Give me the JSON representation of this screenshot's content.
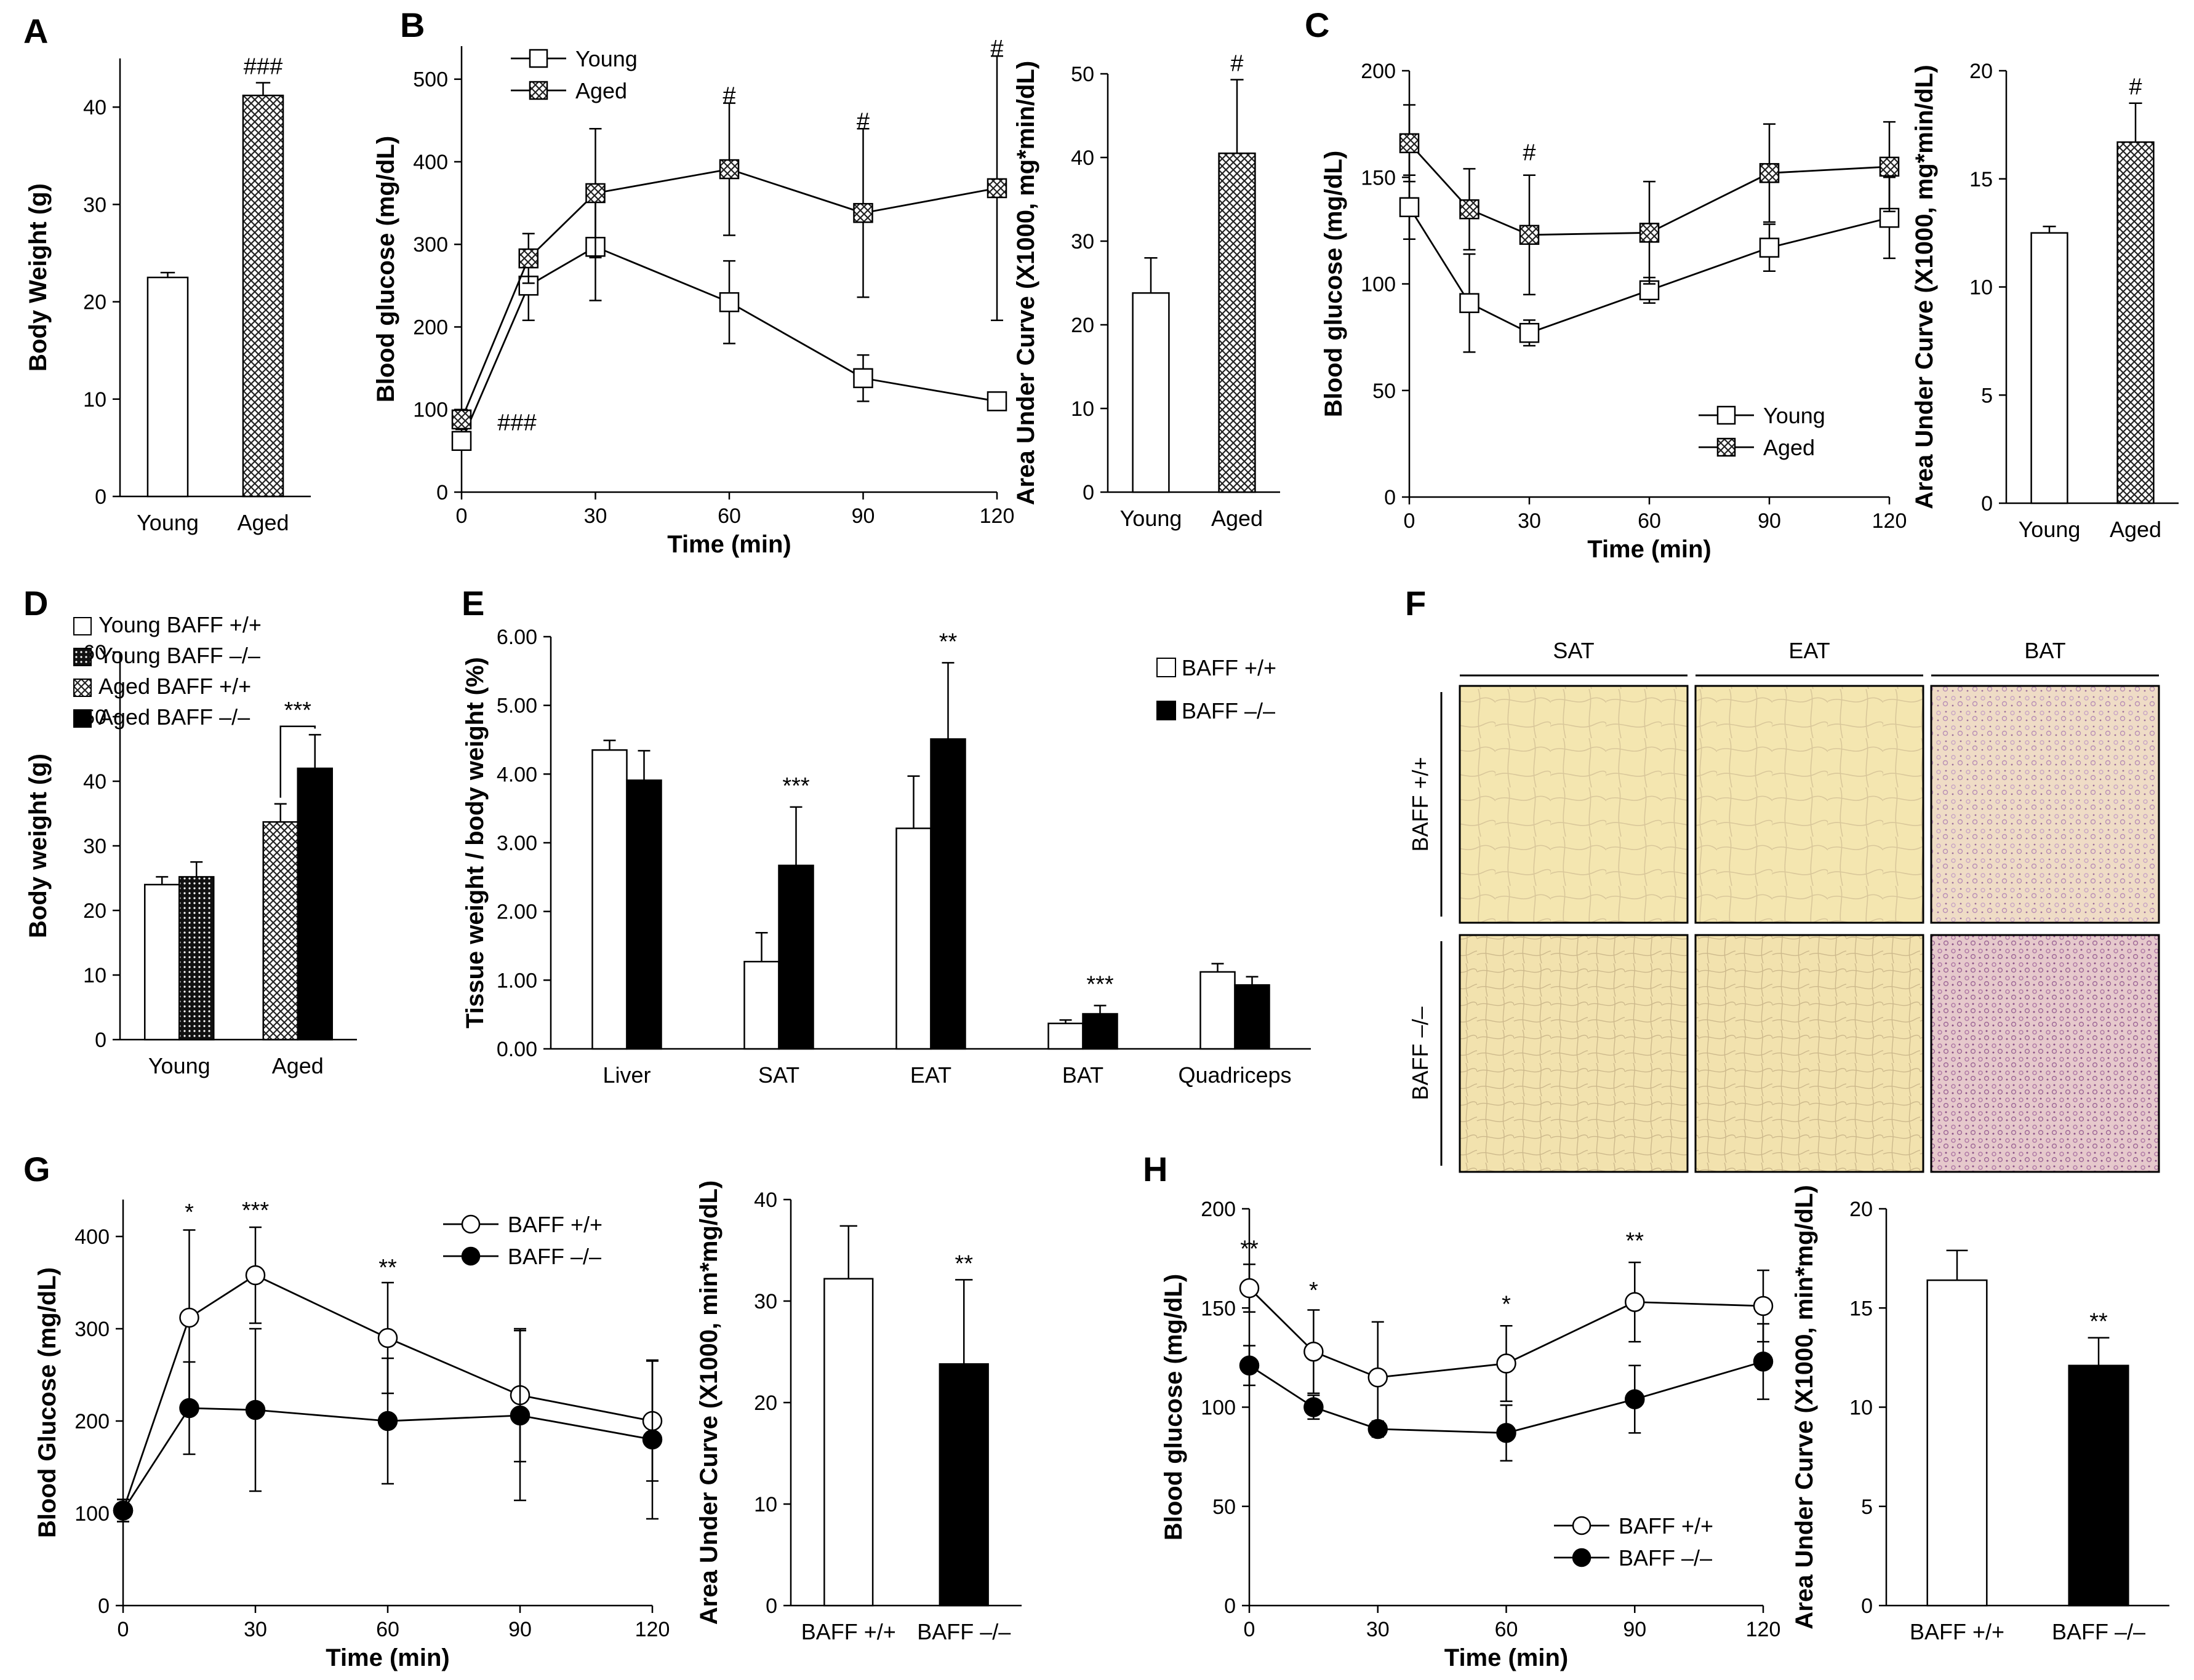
{
  "colors": {
    "axis": "#000000",
    "bar_white": "#ffffff",
    "bar_black": "#000000",
    "hatch": "#333333",
    "histo_yellow": "#f4e6b0",
    "histo_pink": "#dcc0d8"
  },
  "chart_data": [
    {
      "id": "A",
      "type": "bar",
      "panel_letter": "A",
      "ylabel": "Body Weight (g)",
      "ylim": [
        0,
        45
      ],
      "yticks": [
        0,
        10,
        20,
        30,
        40
      ],
      "categories": [
        "Young",
        "Aged"
      ],
      "series": [
        {
          "name": "Body weight",
          "values": [
            22.5,
            41.2
          ],
          "errors": [
            0.5,
            1.3
          ],
          "fills": [
            "white",
            "hatch"
          ]
        }
      ],
      "annotations": [
        {
          "category": "Aged",
          "text": "###"
        }
      ]
    },
    {
      "id": "B_line",
      "type": "line",
      "panel_letter": "B",
      "xlabel": "Time (min)",
      "ylabel": "Blood glucose (mg/dL)",
      "xlim": [
        0,
        120
      ],
      "ylim": [
        0,
        540
      ],
      "xticks": [
        0,
        30,
        60,
        90,
        120
      ],
      "yticks": [
        0,
        100,
        200,
        300,
        400,
        500
      ],
      "x": [
        0,
        15,
        30,
        60,
        90,
        120
      ],
      "series": [
        {
          "name": "Young",
          "marker": "square",
          "values": [
            62,
            250,
            297,
            230,
            138,
            110
          ],
          "errors": [
            10,
            42,
            65,
            50,
            28,
            8
          ]
        },
        {
          "name": "Aged",
          "marker": "square-x",
          "values": [
            88,
            283,
            362,
            391,
            338,
            368
          ],
          "errors": [
            12,
            30,
            78,
            80,
            102,
            160
          ]
        }
      ],
      "annotations": [
        {
          "text": "###",
          "x": 0,
          "y": 75
        },
        {
          "text": "#",
          "x": 60,
          "y": 471
        },
        {
          "text": "#",
          "x": 90,
          "y": 440
        },
        {
          "text": "#",
          "x": 120,
          "y": 528
        }
      ],
      "legend": "top-left"
    },
    {
      "id": "B_bar",
      "type": "bar",
      "ylabel": "Area Under Curve (X1000, mg*min/dL)",
      "ylim": [
        0,
        50
      ],
      "yticks": [
        0,
        10,
        20,
        30,
        40,
        50
      ],
      "categories": [
        "Young",
        "Aged"
      ],
      "series": [
        {
          "name": "AUC",
          "values": [
            23.8,
            40.5
          ],
          "errors": [
            4.2,
            8.8
          ],
          "fills": [
            "white",
            "hatch"
          ]
        }
      ],
      "annotations": [
        {
          "category": "Aged",
          "text": "#"
        }
      ]
    },
    {
      "id": "C_line",
      "type": "line",
      "panel_letter": "C",
      "xlabel": "Time (min)",
      "ylabel": "Blood glucose (mg/dL)",
      "xlim": [
        0,
        120
      ],
      "ylim": [
        0,
        200
      ],
      "xticks": [
        0,
        30,
        60,
        90,
        120
      ],
      "yticks": [
        0,
        50,
        100,
        150,
        200
      ],
      "x": [
        0,
        15,
        30,
        60,
        90,
        120
      ],
      "series": [
        {
          "name": "Young",
          "marker": "square",
          "values": [
            136,
            91,
            77,
            97,
            117,
            131
          ],
          "errors": [
            15,
            23,
            6,
            6,
            11,
            19
          ]
        },
        {
          "name": "Aged",
          "marker": "square-x",
          "values": [
            166,
            135,
            123,
            124,
            152,
            155
          ],
          "errors": [
            18,
            19,
            28,
            24,
            23,
            21
          ]
        }
      ],
      "annotations": [
        {
          "text": "#",
          "x": 30,
          "y": 158
        }
      ],
      "legend": "bottom-right"
    },
    {
      "id": "C_bar",
      "type": "bar",
      "ylabel": "Area Under Curve (X1000, mg*min/dL)",
      "ylim": [
        0,
        20
      ],
      "yticks": [
        0,
        5,
        10,
        15,
        20
      ],
      "categories": [
        "Young",
        "Aged"
      ],
      "series": [
        {
          "name": "AUC",
          "values": [
            12.5,
            16.7
          ],
          "errors": [
            0.3,
            1.8
          ],
          "fills": [
            "white",
            "hatch"
          ]
        }
      ],
      "annotations": [
        {
          "category": "Aged",
          "text": "#"
        }
      ]
    },
    {
      "id": "D",
      "type": "bar",
      "panel_letter": "D",
      "ylabel": "Body weight (g)",
      "ylim": [
        0,
        60
      ],
      "yticks": [
        0,
        10,
        20,
        30,
        40,
        50,
        60
      ],
      "categories": [
        "Young",
        "Aged"
      ],
      "series": [
        {
          "name": "Young BAFF +/+",
          "fill": "white",
          "category": "Young",
          "value": 24,
          "error": 1.2
        },
        {
          "name": "Young BAFF –/–",
          "fill": "dense",
          "category": "Young",
          "value": 25.2,
          "error": 2.3
        },
        {
          "name": "Aged BAFF +/+",
          "fill": "hatch",
          "category": "Aged",
          "value": 33.7,
          "error": 2.8
        },
        {
          "name": "Aged BAFF –/–",
          "fill": "black",
          "category": "Aged",
          "value": 42,
          "error": 5.2
        }
      ],
      "annotations": [
        {
          "text": "***",
          "between": [
            "Aged BAFF +/+",
            "Aged BAFF –/–"
          ]
        }
      ],
      "legend": "top-left"
    },
    {
      "id": "E",
      "type": "bar",
      "panel_letter": "E",
      "ylabel": "Tissue weight / body weight (%)",
      "ylim": [
        0,
        6
      ],
      "yticks": [
        "0.00",
        "1.00",
        "2.00",
        "3.00",
        "4.00",
        "5.00",
        "6.00"
      ],
      "categories": [
        "Liver",
        "SAT",
        "EAT",
        "BAT",
        "Quadriceps"
      ],
      "series": [
        {
          "name": "BAFF +/+",
          "fill": "white",
          "values": [
            4.35,
            1.27,
            3.21,
            0.37,
            1.12
          ],
          "errors": [
            0.14,
            0.42,
            0.76,
            0.05,
            0.12
          ]
        },
        {
          "name": "BAFF –/–",
          "fill": "black",
          "values": [
            3.91,
            2.67,
            4.51,
            0.51,
            0.93
          ],
          "errors": [
            0.43,
            0.85,
            1.11,
            0.12,
            0.12
          ]
        }
      ],
      "annotations": [
        {
          "category": "SAT",
          "text": "***"
        },
        {
          "category": "EAT",
          "text": "**"
        },
        {
          "category": "BAT",
          "text": "***"
        }
      ],
      "legend": "top-right"
    },
    {
      "id": "G_line",
      "type": "line",
      "panel_letter": "G",
      "xlabel": "Time (min)",
      "ylabel": "Blood Glucose (mg/dL)",
      "xlim": [
        0,
        120
      ],
      "ylim": [
        0,
        440
      ],
      "xticks": [
        0,
        30,
        60,
        90,
        120
      ],
      "yticks": [
        0,
        100,
        200,
        300,
        400
      ],
      "x": [
        0,
        15,
        30,
        60,
        90,
        120
      ],
      "series": [
        {
          "name": "BAFF +/+",
          "marker": "circle-open",
          "values": [
            103,
            312,
            358,
            290,
            228,
            200
          ],
          "errors": [
            12,
            95,
            52,
            60,
            72,
            65
          ]
        },
        {
          "name": "BAFF –/–",
          "marker": "circle-filled",
          "values": [
            103,
            214,
            212,
            200,
            206,
            180
          ],
          "errors": [
            12,
            50,
            88,
            68,
            92,
            86
          ]
        }
      ],
      "annotations": [
        {
          "text": "*",
          "x": 15,
          "y": 418
        },
        {
          "text": "***",
          "x": 30,
          "y": 420
        },
        {
          "text": "**",
          "x": 60,
          "y": 358
        }
      ],
      "legend": "top-right"
    },
    {
      "id": "G_bar",
      "type": "bar",
      "ylabel": "Area Under Curve (X1000, min*mg/dL)",
      "ylim": [
        0,
        40
      ],
      "yticks": [
        0,
        10,
        20,
        30,
        40
      ],
      "categories": [
        "BAFF +/+",
        "BAFF –/–"
      ],
      "series": [
        {
          "name": "AUC",
          "values": [
            32.2,
            23.8
          ],
          "errors": [
            5.2,
            8.3
          ],
          "fills": [
            "white",
            "black"
          ]
        }
      ],
      "annotations": [
        {
          "category": "BAFF –/–",
          "text": "**"
        }
      ]
    },
    {
      "id": "H_line",
      "type": "line",
      "panel_letter": "H",
      "xlabel": "Time (min)",
      "ylabel": "Blood glucose (mg/dL)",
      "xlim": [
        0,
        120
      ],
      "ylim": [
        0,
        200
      ],
      "xticks": [
        0,
        30,
        60,
        90,
        120
      ],
      "yticks": [
        0,
        50,
        100,
        150,
        200
      ],
      "x": [
        0,
        15,
        30,
        60,
        90,
        120
      ],
      "series": [
        {
          "name": "BAFF +/+",
          "marker": "circle-open",
          "values": [
            160,
            128,
            115,
            122,
            153,
            151
          ],
          "errors": [
            12,
            21,
            28,
            19,
            20,
            18
          ]
        },
        {
          "name": "BAFF –/–",
          "marker": "circle-filled",
          "values": [
            121,
            100,
            89,
            87,
            104,
            123
          ],
          "errors": [
            10,
            6,
            4,
            14,
            17,
            19
          ]
        }
      ],
      "annotations": [
        {
          "text": "**",
          "x": 0,
          "y": 176
        },
        {
          "text": "*",
          "x": 15,
          "y": 155
        },
        {
          "text": "*",
          "x": 60,
          "y": 148
        },
        {
          "text": "**",
          "x": 90,
          "y": 180
        }
      ],
      "legend": "bottom-right"
    },
    {
      "id": "H_bar",
      "type": "bar",
      "ylabel": "Area Under Curve (X1000, min*mg/dL)",
      "ylim": [
        0,
        20
      ],
      "yticks": [
        0,
        5,
        10,
        15,
        20
      ],
      "categories": [
        "BAFF +/+",
        "BAFF –/–"
      ],
      "series": [
        {
          "name": "AUC",
          "values": [
            16.4,
            12.1
          ],
          "errors": [
            1.5,
            1.4
          ],
          "fills": [
            "white",
            "black"
          ]
        }
      ],
      "annotations": [
        {
          "category": "BAFF –/–",
          "text": "**"
        }
      ]
    }
  ],
  "panel_f": {
    "panel_letter": "F",
    "columns": [
      "SAT",
      "EAT",
      "BAT"
    ],
    "rows": [
      "BAFF +/+",
      "BAFF –/–"
    ]
  }
}
